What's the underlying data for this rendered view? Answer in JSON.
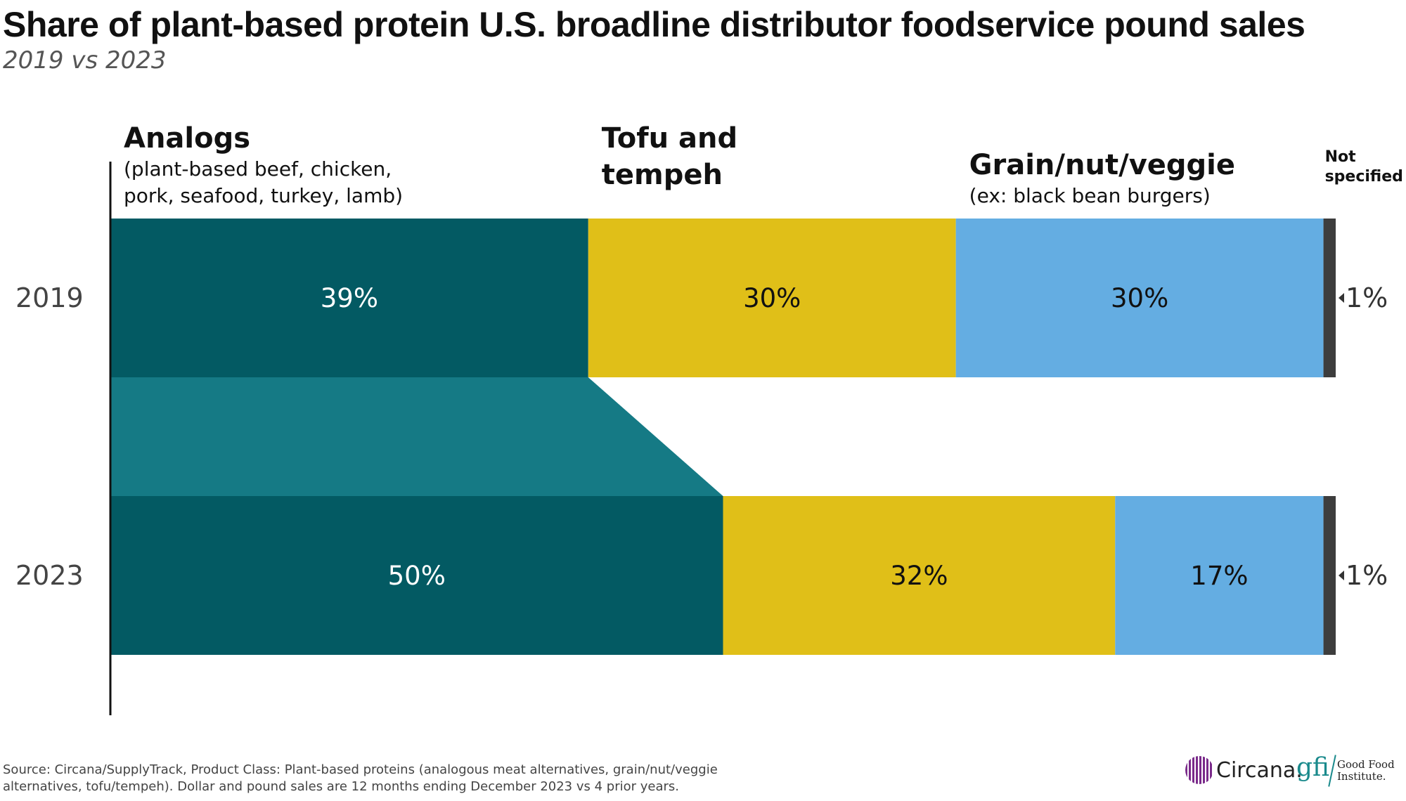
{
  "chart_data": {
    "type": "bar",
    "orientation": "horizontal",
    "stacked": "100%",
    "title": "Share of plant-based protein U.S. broadline distributor foodservice pound sales",
    "subtitle": "2019 vs 2023",
    "categories": [
      "2019",
      "2023"
    ],
    "series": [
      {
        "name": "Analogs",
        "subtitle_lines": [
          "(plant-based beef, chicken,",
          "pork, seafood, turkey, lamb)"
        ],
        "title_lines": [
          "Analogs"
        ],
        "color": "#035a63",
        "label_color": "#ffffff",
        "values": [
          39,
          50
        ],
        "labels": [
          "39%",
          "50%"
        ]
      },
      {
        "name": "Tofu and tempeh",
        "title_lines": [
          "Tofu and",
          "tempeh"
        ],
        "subtitle_lines": [],
        "color": "#e0bf18",
        "label_color": "#111111",
        "values": [
          30,
          32
        ],
        "labels": [
          "30%",
          "32%"
        ]
      },
      {
        "name": "Grain/nut/veggie",
        "title_lines": [
          "Grain/nut/veggie"
        ],
        "subtitle_lines": [
          "(ex: black bean burgers)"
        ],
        "color": "#64ade2",
        "label_color": "#111111",
        "values": [
          30,
          17
        ],
        "labels": [
          "30%",
          "17%"
        ]
      },
      {
        "name": "Not specified",
        "title_lines": [
          "Not",
          "specified"
        ],
        "subtitle_lines": [],
        "color": "#3d3d3d",
        "label_color": "#333333",
        "values": [
          1,
          1
        ],
        "labels": [
          "1%",
          "1%"
        ]
      }
    ],
    "connector_color": "#157a85",
    "xlim": [
      0,
      100
    ],
    "grid": false,
    "legend": "labels above bars"
  },
  "source": "Source: Circana/SupplyTrack, Product Class: Plant-based proteins (analogous meat alternatives, grain/nut/veggie alternatives, tofu/tempeh). Dollar and pound sales are 12 months ending December 2023 vs 4 prior years.",
  "logos": {
    "circana": "Circana.",
    "gfi": "gfi",
    "gfi_name": "Good Food Institute."
  }
}
